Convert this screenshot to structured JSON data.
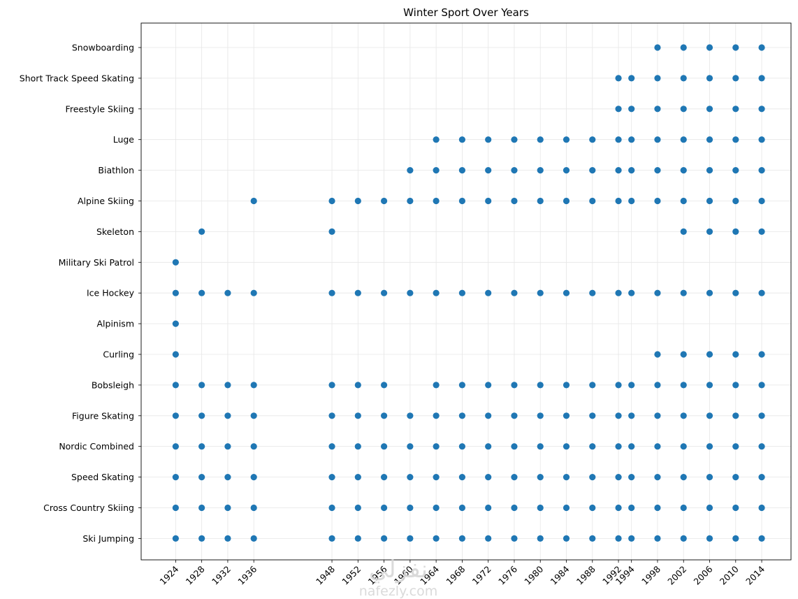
{
  "chart_data": {
    "type": "scatter",
    "title": "Winter Sport Over Years",
    "xlabel": "",
    "ylabel": "",
    "grid": true,
    "point_color": "#1f77b4",
    "x_ticks": [
      1924,
      1928,
      1932,
      1936,
      1948,
      1952,
      1956,
      1960,
      1964,
      1968,
      1972,
      1976,
      1980,
      1984,
      1988,
      1992,
      1994,
      1998,
      2002,
      2006,
      2010,
      2014
    ],
    "xlim": [
      1918.7,
      2018.5
    ],
    "categories": [
      "Ski Jumping",
      "Cross Country Skiing",
      "Speed Skating",
      "Nordic Combined",
      "Figure Skating",
      "Bobsleigh",
      "Curling",
      "Alpinism",
      "Ice Hockey",
      "Military Ski Patrol",
      "Skeleton",
      "Alpine Skiing",
      "Biathlon",
      "Luge",
      "Freestyle Skiing",
      "Short Track Speed Skating",
      "Snowboarding"
    ],
    "series": [
      {
        "sport": "Ski Jumping",
        "years": [
          1924,
          1928,
          1932,
          1936,
          1948,
          1952,
          1956,
          1960,
          1964,
          1968,
          1972,
          1976,
          1980,
          1984,
          1988,
          1992,
          1994,
          1998,
          2002,
          2006,
          2010,
          2014
        ]
      },
      {
        "sport": "Cross Country Skiing",
        "years": [
          1924,
          1928,
          1932,
          1936,
          1948,
          1952,
          1956,
          1960,
          1964,
          1968,
          1972,
          1976,
          1980,
          1984,
          1988,
          1992,
          1994,
          1998,
          2002,
          2006,
          2010,
          2014
        ]
      },
      {
        "sport": "Speed Skating",
        "years": [
          1924,
          1928,
          1932,
          1936,
          1948,
          1952,
          1956,
          1960,
          1964,
          1968,
          1972,
          1976,
          1980,
          1984,
          1988,
          1992,
          1994,
          1998,
          2002,
          2006,
          2010,
          2014
        ]
      },
      {
        "sport": "Nordic Combined",
        "years": [
          1924,
          1928,
          1932,
          1936,
          1948,
          1952,
          1956,
          1960,
          1964,
          1968,
          1972,
          1976,
          1980,
          1984,
          1988,
          1992,
          1994,
          1998,
          2002,
          2006,
          2010,
          2014
        ]
      },
      {
        "sport": "Figure Skating",
        "years": [
          1924,
          1928,
          1932,
          1936,
          1948,
          1952,
          1956,
          1960,
          1964,
          1968,
          1972,
          1976,
          1980,
          1984,
          1988,
          1992,
          1994,
          1998,
          2002,
          2006,
          2010,
          2014
        ]
      },
      {
        "sport": "Bobsleigh",
        "years": [
          1924,
          1928,
          1932,
          1936,
          1948,
          1952,
          1956,
          1964,
          1968,
          1972,
          1976,
          1980,
          1984,
          1988,
          1992,
          1994,
          1998,
          2002,
          2006,
          2010,
          2014
        ]
      },
      {
        "sport": "Curling",
        "years": [
          1924,
          1998,
          2002,
          2006,
          2010,
          2014
        ]
      },
      {
        "sport": "Alpinism",
        "years": [
          1924
        ]
      },
      {
        "sport": "Ice Hockey",
        "years": [
          1924,
          1928,
          1932,
          1936,
          1948,
          1952,
          1956,
          1960,
          1964,
          1968,
          1972,
          1976,
          1980,
          1984,
          1988,
          1992,
          1994,
          1998,
          2002,
          2006,
          2010,
          2014
        ]
      },
      {
        "sport": "Military Ski Patrol",
        "years": [
          1924
        ]
      },
      {
        "sport": "Skeleton",
        "years": [
          1928,
          1948,
          2002,
          2006,
          2010,
          2014
        ]
      },
      {
        "sport": "Alpine Skiing",
        "years": [
          1936,
          1948,
          1952,
          1956,
          1960,
          1964,
          1968,
          1972,
          1976,
          1980,
          1984,
          1988,
          1992,
          1994,
          1998,
          2002,
          2006,
          2010,
          2014
        ]
      },
      {
        "sport": "Biathlon",
        "years": [
          1960,
          1964,
          1968,
          1972,
          1976,
          1980,
          1984,
          1988,
          1992,
          1994,
          1998,
          2002,
          2006,
          2010,
          2014
        ]
      },
      {
        "sport": "Luge",
        "years": [
          1964,
          1968,
          1972,
          1976,
          1980,
          1984,
          1988,
          1992,
          1994,
          1998,
          2002,
          2006,
          2010,
          2014
        ]
      },
      {
        "sport": "Freestyle Skiing",
        "years": [
          1992,
          1994,
          1998,
          2002,
          2006,
          2010,
          2014
        ]
      },
      {
        "sport": "Short Track Speed Skating",
        "years": [
          1992,
          1994,
          1998,
          2002,
          2006,
          2010,
          2014
        ]
      },
      {
        "sport": "Snowboarding",
        "years": [
          1998,
          2002,
          2006,
          2010,
          2014
        ]
      }
    ]
  },
  "watermark": {
    "arabic": "نفزلي",
    "latin": "nafezly.com"
  }
}
